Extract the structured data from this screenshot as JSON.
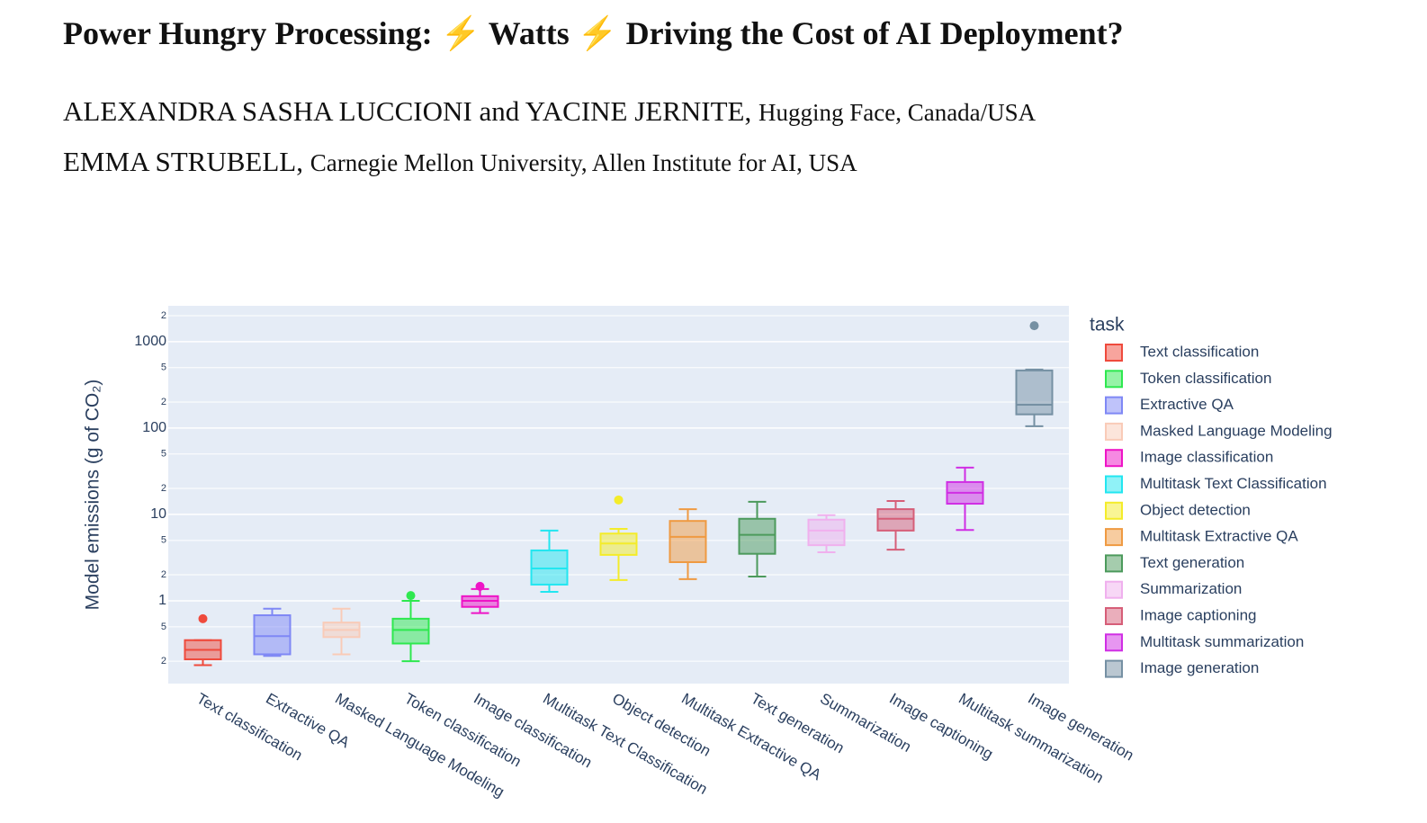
{
  "header": {
    "title": "Power Hungry Processing: ⚡ Watts ⚡ Driving the Cost of AI Deployment?"
  },
  "authors": [
    {
      "names": "ALEXANDRA SASHA LUCCIONI and YACINE JERNITE,",
      "affiliation": "Hugging Face, Canada/USA"
    },
    {
      "names": "EMMA STRUBELL,",
      "affiliation": "Carnegie Mellon University, Allen Institute for AI, USA"
    }
  ],
  "chart_data": {
    "type": "box",
    "y_label": "Model emissions (g of CO₂)",
    "log_y": true,
    "grid": true,
    "legend_title": "task",
    "categories": [
      "Text classification",
      "Extractive QA",
      "Masked Language Modeling",
      "Token classification",
      "Image classification",
      "Multitask Text Classification",
      "Object detection",
      "Multitask Extractive QA",
      "Text generation",
      "Summarization",
      "Image captioning",
      "Multitask summarization",
      "Image generation"
    ],
    "ylim": [
      0.11,
      2600
    ],
    "yticks": [
      {
        "value": 0.2,
        "label": "2"
      },
      {
        "value": 0.5,
        "label": "5"
      },
      1,
      {
        "value": 2,
        "label": "2"
      },
      {
        "value": 5,
        "label": "5"
      },
      10,
      {
        "value": 20,
        "label": "2"
      },
      {
        "value": 50,
        "label": "5"
      },
      100,
      {
        "value": 200,
        "label": "2"
      },
      {
        "value": 500,
        "label": "5"
      },
      1000,
      {
        "value": 2000,
        "label": "2"
      }
    ],
    "series": [
      {
        "name": "Text classification",
        "color": "#ef4a3c",
        "min": 0.18,
        "q1": 0.21,
        "median": 0.27,
        "q3": 0.35,
        "max": 0.35,
        "outliers": [
          0.62
        ]
      },
      {
        "name": "Token classification",
        "color": "#2ee84f",
        "min": 0.2,
        "q1": 0.32,
        "median": 0.46,
        "q3": 0.62,
        "max": 1.0,
        "outliers": [
          1.15
        ]
      },
      {
        "name": "Extractive QA",
        "color": "#7f88f5",
        "min": 0.23,
        "q1": 0.24,
        "median": 0.39,
        "q3": 0.68,
        "max": 0.81,
        "outliers": []
      },
      {
        "name": "Masked Language Modeling",
        "color": "#f9cbb8",
        "min": 0.24,
        "q1": 0.38,
        "median": 0.46,
        "q3": 0.56,
        "max": 0.81,
        "outliers": []
      },
      {
        "name": "Image classification",
        "color": "#ee14c6",
        "min": 0.72,
        "q1": 0.85,
        "median": 1.0,
        "q3": 1.13,
        "max": 1.37,
        "outliers": [
          1.47
        ]
      },
      {
        "name": "Multitask Text Classification",
        "color": "#22e6f0",
        "min": 1.27,
        "q1": 1.54,
        "median": 2.37,
        "q3": 3.83,
        "max": 6.5,
        "outliers": []
      },
      {
        "name": "Object detection",
        "color": "#f4ec2a",
        "min": 1.74,
        "q1": 3.4,
        "median": 4.6,
        "q3": 6.0,
        "max": 6.8,
        "outliers": [
          14.7
        ]
      },
      {
        "name": "Multitask Extractive QA",
        "color": "#ef9a42",
        "min": 1.78,
        "q1": 2.8,
        "median": 5.5,
        "q3": 8.4,
        "max": 11.5,
        "outliers": []
      },
      {
        "name": "Text generation",
        "color": "#4c9a5c",
        "min": 1.91,
        "q1": 3.5,
        "median": 5.8,
        "q3": 8.9,
        "max": 14,
        "outliers": []
      },
      {
        "name": "Summarization",
        "color": "#f0b0ee",
        "min": 3.65,
        "q1": 4.4,
        "median": 6.5,
        "q3": 8.7,
        "max": 9.8,
        "outliers": []
      },
      {
        "name": "Image captioning",
        "color": "#d65e78",
        "min": 3.9,
        "q1": 6.5,
        "median": 8.9,
        "q3": 11.5,
        "max": 14.3,
        "outliers": []
      },
      {
        "name": "Multitask summarization",
        "color": "#d02ee4",
        "min": 6.6,
        "q1": 13.3,
        "median": 17.8,
        "q3": 23.7,
        "max": 34.8,
        "outliers": []
      },
      {
        "name": "Image generation",
        "color": "#7590a3",
        "min": 105,
        "q1": 144,
        "median": 186,
        "q3": 464,
        "max": 475,
        "outliers": [
          1530
        ]
      }
    ]
  }
}
